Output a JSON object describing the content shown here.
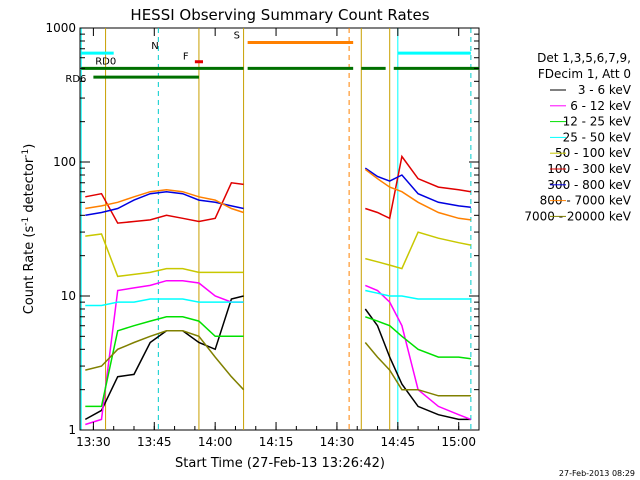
{
  "chart_data": {
    "type": "line",
    "title": "HESSI Observing Summary Count Rates",
    "xlabel": "Start Time (27-Feb-13 13:26:42)",
    "ylabel": "Count Rate (s",
    "ylabel_sup1": "-1",
    "ylabel_mid": " detector",
    "ylabel_sup2": "-1",
    "ylabel_end": ")",
    "y_scale": "log",
    "xlim": [
      "13:26:42",
      "15:05:00"
    ],
    "ylim": [
      1,
      1000
    ],
    "x_ticks": [
      "13:30",
      "13:45",
      "14:00",
      "14:15",
      "14:30",
      "14:45",
      "15:00"
    ],
    "y_ticks": [
      "1",
      "10",
      "100",
      "1000"
    ],
    "legend": {
      "placement": "right",
      "header1": "Det 1,3,5,6,7,9,",
      "header2": "FDecim 1, Att 0"
    },
    "series": [
      {
        "name": "3 - 6 keV",
        "color": "#000000",
        "segments": [
          {
            "x": [
              "13:28",
              "13:32",
              "13:36",
              "13:40",
              "13:44",
              "13:48",
              "13:52",
              "13:56",
              "14:00",
              "14:04",
              "14:07"
            ],
            "y": [
              1.2,
              1.4,
              2.5,
              2.6,
              4.5,
              5.5,
              5.5,
              4.5,
              4.0,
              9.5,
              10
            ]
          },
          {
            "x": [
              "14:37",
              "14:40",
              "14:43",
              "14:46",
              "14:50",
              "14:55",
              "15:00",
              "15:03"
            ],
            "y": [
              8,
              6,
              3.5,
              2.2,
              1.5,
              1.3,
              1.2,
              1.2
            ]
          }
        ]
      },
      {
        "name": "6 - 12 keV",
        "color": "#ff00ff",
        "segments": [
          {
            "x": [
              "13:28",
              "13:32",
              "13:36",
              "13:40",
              "13:44",
              "13:48",
              "13:52",
              "13:56",
              "14:00",
              "14:04",
              "14:07"
            ],
            "y": [
              1.1,
              1.2,
              11,
              11.5,
              12,
              13,
              13,
              12.5,
              10,
              9,
              9
            ]
          },
          {
            "x": [
              "14:37",
              "14:40",
              "14:43",
              "14:46",
              "14:50",
              "14:55",
              "15:00",
              "15:03"
            ],
            "y": [
              12,
              11,
              9,
              6,
              2,
              1.5,
              1.3,
              1.2
            ]
          }
        ]
      },
      {
        "name": "12 - 25 keV",
        "color": "#00e000",
        "segments": [
          {
            "x": [
              "13:28",
              "13:32",
              "13:36",
              "13:40",
              "13:44",
              "13:48",
              "13:52",
              "13:56",
              "14:00",
              "14:04",
              "14:07"
            ],
            "y": [
              1.5,
              1.5,
              5.5,
              6,
              6.5,
              7,
              7,
              6.5,
              5,
              5,
              5
            ]
          },
          {
            "x": [
              "14:37",
              "14:40",
              "14:43",
              "14:46",
              "14:50",
              "14:55",
              "15:00",
              "15:03"
            ],
            "y": [
              7,
              6.5,
              6,
              5,
              4,
              3.5,
              3.5,
              3.4
            ]
          }
        ]
      },
      {
        "name": "25 - 50 keV",
        "color": "#00ffff",
        "segments": [
          {
            "x": [
              "13:28",
              "13:32",
              "13:36",
              "13:40",
              "13:44",
              "13:48",
              "13:52",
              "13:56",
              "14:00",
              "14:04",
              "14:07"
            ],
            "y": [
              8.5,
              8.5,
              9,
              9,
              9.5,
              9.5,
              9.5,
              9,
              9,
              9,
              9
            ]
          },
          {
            "x": [
              "14:37",
              "14:40",
              "14:43",
              "14:46",
              "14:50",
              "14:55",
              "15:00",
              "15:03"
            ],
            "y": [
              11,
              10.5,
              10,
              10,
              9.5,
              9.5,
              9.5,
              9.5
            ]
          }
        ]
      },
      {
        "name": "50 - 100 keV",
        "color": "#c8c800",
        "segments": [
          {
            "x": [
              "13:28",
              "13:32",
              "13:36",
              "13:40",
              "13:44",
              "13:48",
              "13:52",
              "13:56",
              "14:00",
              "14:04",
              "14:07"
            ],
            "y": [
              28,
              29,
              14,
              14.5,
              15,
              16,
              16,
              15,
              15,
              15,
              15
            ]
          },
          {
            "x": [
              "14:37",
              "14:40",
              "14:43",
              "14:46",
              "14:50",
              "14:55",
              "15:00",
              "15:03"
            ],
            "y": [
              19,
              18,
              17,
              16,
              30,
              27,
              25,
              24
            ]
          }
        ]
      },
      {
        "name": "100 - 300 keV",
        "color": "#e00000",
        "segments": [
          {
            "x": [
              "13:28",
              "13:32",
              "13:36",
              "13:40",
              "13:44",
              "13:48",
              "13:52",
              "13:56",
              "14:00",
              "14:04",
              "14:07"
            ],
            "y": [
              55,
              58,
              35,
              36,
              37,
              40,
              38,
              36,
              38,
              70,
              68
            ]
          },
          {
            "x": [
              "14:37",
              "14:40",
              "14:43",
              "14:46",
              "14:50",
              "14:55",
              "15:00",
              "15:03"
            ],
            "y": [
              45,
              42,
              38,
              110,
              75,
              65,
              62,
              60
            ]
          }
        ]
      },
      {
        "name": "300 - 800 keV",
        "color": "#0000e0",
        "segments": [
          {
            "x": [
              "13:28",
              "13:32",
              "13:36",
              "13:40",
              "13:44",
              "13:48",
              "13:52",
              "13:56",
              "14:00",
              "14:04",
              "14:07"
            ],
            "y": [
              40,
              42,
              45,
              52,
              58,
              60,
              58,
              52,
              50,
              47,
              45
            ]
          },
          {
            "x": [
              "14:37",
              "14:40",
              "14:43",
              "14:46",
              "14:50",
              "14:55",
              "15:00",
              "15:03"
            ],
            "y": [
              90,
              78,
              72,
              80,
              58,
              50,
              47,
              46
            ]
          }
        ]
      },
      {
        "name": "800 - 7000 keV",
        "color": "#ff8000",
        "segments": [
          {
            "x": [
              "13:28",
              "13:32",
              "13:36",
              "13:40",
              "13:44",
              "13:48",
              "13:52",
              "13:56",
              "14:00",
              "14:04",
              "14:07"
            ],
            "y": [
              45,
              47,
              50,
              55,
              60,
              62,
              60,
              55,
              52,
              45,
              42
            ]
          },
          {
            "x": [
              "14:37",
              "14:40",
              "14:43",
              "14:46",
              "14:50",
              "14:55",
              "15:00",
              "15:03"
            ],
            "y": [
              88,
              75,
              65,
              60,
              50,
              42,
              38,
              37
            ]
          }
        ]
      },
      {
        "name": "7000 - 20000 keV",
        "color": "#808000",
        "segments": [
          {
            "x": [
              "13:28",
              "13:32",
              "13:36",
              "13:40",
              "13:44",
              "13:48",
              "13:52",
              "13:56",
              "14:00",
              "14:04",
              "14:07"
            ],
            "y": [
              2.8,
              3.0,
              4.0,
              4.5,
              5.0,
              5.5,
              5.5,
              5.0,
              3.5,
              2.5,
              2.0
            ]
          },
          {
            "x": [
              "14:37",
              "14:40",
              "14:43",
              "14:46",
              "14:50",
              "14:55",
              "15:00",
              "15:03"
            ],
            "y": [
              4.5,
              3.5,
              2.8,
              2.0,
              2.0,
              1.8,
              1.8,
              1.8
            ]
          }
        ]
      }
    ],
    "flag_bars": [
      {
        "label": "N",
        "color": "#00ffff",
        "segments": [
          [
            "13:27",
            "13:35"
          ],
          [
            "14:45",
            "15:03"
          ]
        ],
        "level": 650
      },
      {
        "label": "F",
        "color": "#e00000",
        "segments": [
          [
            "13:55",
            "13:57"
          ]
        ],
        "level": 560
      },
      {
        "label": "S",
        "color": "#ff8000",
        "segments": [
          [
            "14:08",
            "14:34"
          ]
        ],
        "level": 780
      },
      {
        "label": "RD0",
        "color": "#007000",
        "segments": [
          [
            "13:27",
            "14:07"
          ],
          [
            "14:08",
            "14:34"
          ],
          [
            "14:36",
            "14:42"
          ],
          [
            "14:44",
            "15:05"
          ]
        ],
        "level": 500
      },
      {
        "label": "RD6",
        "color": "#007000",
        "segments": [
          [
            "13:30",
            "13:56"
          ]
        ],
        "level": 430
      }
    ],
    "vertical_lines": [
      {
        "x": "13:27",
        "color": "#00ffff",
        "style": "solid"
      },
      {
        "x": "13:33",
        "color": "#c8a000",
        "style": "solid"
      },
      {
        "x": "13:46",
        "color": "#00cccc",
        "style": "dashed"
      },
      {
        "x": "13:56",
        "color": "#c8a000",
        "style": "solid"
      },
      {
        "x": "14:07",
        "color": "#c8a000",
        "style": "solid"
      },
      {
        "x": "14:33",
        "color": "#ff8000",
        "style": "dashed"
      },
      {
        "x": "14:36",
        "color": "#c8a000",
        "style": "solid"
      },
      {
        "x": "14:43",
        "color": "#c8a000",
        "style": "solid"
      },
      {
        "x": "14:45",
        "color": "#00ffff",
        "style": "solid"
      },
      {
        "x": "15:03",
        "color": "#00cccc",
        "style": "dashed"
      }
    ],
    "timestamp": "27-Feb-2013 08:29"
  }
}
